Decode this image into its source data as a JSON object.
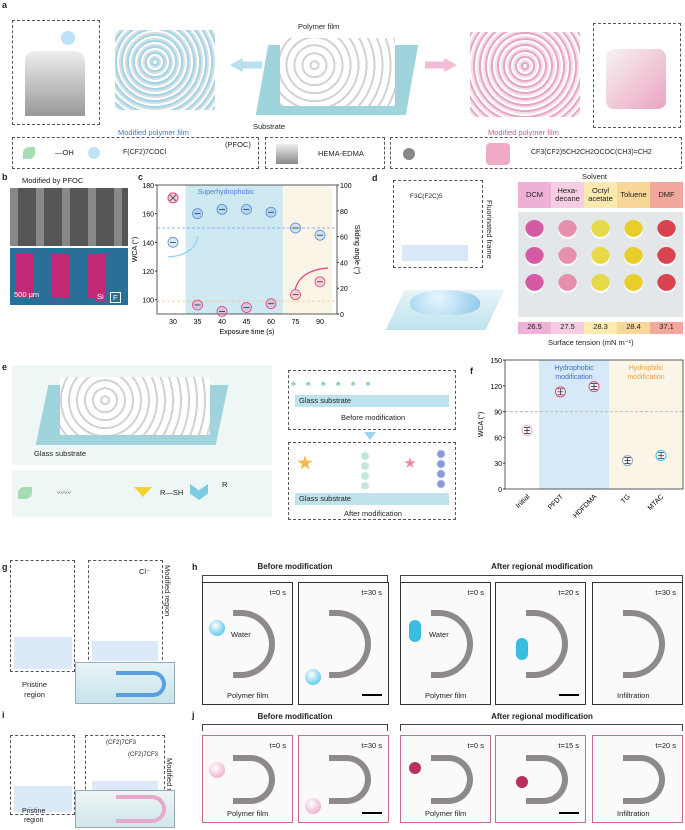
{
  "panels": {
    "a": "a",
    "b": "b",
    "c": "c",
    "d": "d",
    "e": "e",
    "f": "f",
    "g": "g",
    "h": "h",
    "i": "i",
    "j": "j"
  },
  "a": {
    "polymer_film": "Polymer film",
    "substrate": "Substrate",
    "modified_left": "Modified polymer film",
    "modified_right": "Modified polymer film",
    "oh": "—OH",
    "pfoc": "(PFOC)",
    "pfoc_formula": "F(CF2)7COCl",
    "hema_edma": "HEMA-EDMA",
    "acryl_formula": "CF3(CF2)5CH2CH2OCOC(CH3)=CH2"
  },
  "b": {
    "title": "Modified by PFOC",
    "scale": "500 μm",
    "si": "Si",
    "f": "F"
  },
  "chart_data": [
    {
      "type": "scatter",
      "xlabel": "Exposure time (s)",
      "ylabel": "WCA (°)",
      "ylabel_right": "Sliding angle (°)",
      "categories": [
        "30",
        "35",
        "40",
        "45",
        "60",
        "75",
        "90"
      ],
      "ylim": [
        90,
        180
      ],
      "ylim_right": [
        0,
        100
      ],
      "yticks": [
        100,
        120,
        140,
        160,
        180
      ],
      "yticks_right": [
        0,
        20,
        40,
        60,
        80,
        100
      ],
      "annotation": "Superhydrophobic",
      "shaded_regions": [
        {
          "from": "35",
          "to": "60",
          "color": "#cfe9f3"
        },
        {
          "from": "75",
          "to": "90",
          "color": "#fbf5e8"
        }
      ],
      "reference_lines": [
        {
          "axis": "left",
          "value": 150,
          "color": "#7a9ed6"
        },
        {
          "axis": "right",
          "value": 10,
          "color": "#f2c48a"
        }
      ],
      "series": [
        {
          "axis": "left",
          "color": "#4f8fd8",
          "values": [
            140,
            160,
            163,
            163,
            161,
            150,
            145
          ]
        },
        {
          "axis": "right",
          "color": "#e2457f",
          "values": [
            null,
            7,
            2,
            5,
            8,
            15,
            25
          ],
          "no_slide_marker": "30"
        }
      ]
    },
    {
      "type": "scatter",
      "ylabel": "WCA (°)",
      "categories": [
        "Initial",
        "PFDT",
        "HDFDMA",
        "TG",
        "MTAC"
      ],
      "values": [
        68,
        113,
        119,
        33,
        39
      ],
      "ylim": [
        0,
        150
      ],
      "yticks": [
        0,
        30,
        60,
        90,
        120,
        150
      ],
      "reference_line": 90,
      "colors": [
        "#f2a2d6",
        "#e2457f",
        "#e2457f",
        "#8aa6c8",
        "#35c4e8"
      ],
      "regions": [
        {
          "label": "Hydrophobic modification",
          "color": "#d6e9f8",
          "text_color": "#3b6fc0"
        },
        {
          "label": "Hydrophilic modification",
          "color": "#fbf5e8",
          "text_color": "#f0a040"
        }
      ]
    }
  ],
  "d": {
    "solvent": "Solvent",
    "formula": "F3C(F2C)5",
    "frame_label": "Fluorinated frame",
    "solvents": [
      {
        "name": "DCM",
        "tension": "26.5",
        "color": "#eeb0d4",
        "drop": "#d45aa6"
      },
      {
        "name": "Hexa-\ndecane",
        "tension": "27.5",
        "color": "#f6cde2",
        "drop": "#e591ae"
      },
      {
        "name": "Octyl\nacetate",
        "tension": "28.3",
        "color": "#fbeab0",
        "drop": "#e7d94a"
      },
      {
        "name": "Toluene",
        "tension": "28.4",
        "color": "#f8d798",
        "drop": "#e8ce2a"
      },
      {
        "name": "DMF",
        "tension": "37.1",
        "color": "#f2a79c",
        "drop": "#d8434e"
      }
    ],
    "xlabel": "Surface tension (mN m⁻¹)"
  },
  "e": {
    "glass": "Glass substrate",
    "glass_top": "Glass substrate",
    "before": "Before modification",
    "glass_bottom": "Glass substrate",
    "after": "After modification",
    "rsh": "R—SH",
    "r": "R"
  },
  "g": {
    "pristine": "Pristine\nregion",
    "modified": "Modified region",
    "cl": "Cl⁻"
  },
  "h": {
    "before": "Before modification",
    "after": "After regional modification",
    "frames": [
      {
        "time": "t=0 s",
        "label1": "Water",
        "label2": "Polymer film"
      },
      {
        "time": "t=30 s"
      },
      {
        "time": "t=0 s",
        "label1": "Water",
        "label2": "Polymer film"
      },
      {
        "time": "t=20 s"
      },
      {
        "time": "t=30 s",
        "label2": "Infiltration"
      }
    ]
  },
  "i": {
    "pristine": "Pristine\nregion",
    "modified": "Modified region",
    "cf1": "(CF2)7CF3",
    "cf2": "(CF2)7CF3"
  },
  "j": {
    "before": "Before modification",
    "after": "After regional modification",
    "frames": [
      {
        "time": "t=0 s",
        "label2": "Polymer film"
      },
      {
        "time": "t=30 s"
      },
      {
        "time": "t=0 s",
        "label2": "Polymer film"
      },
      {
        "time": "t=15 s"
      },
      {
        "time": "t=20 s",
        "label2": "Infiltration"
      }
    ]
  }
}
